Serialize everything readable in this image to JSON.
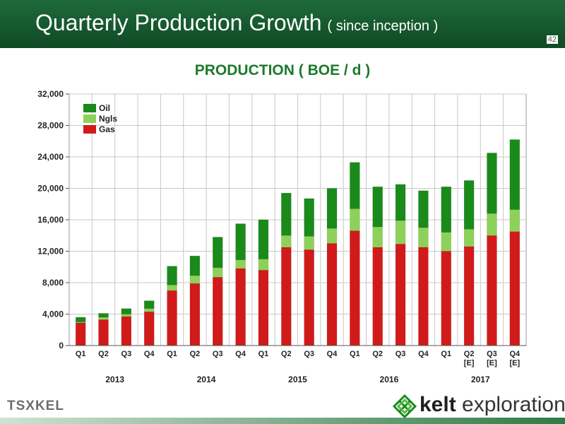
{
  "header": {
    "title": "Quarterly Production Growth",
    "subtitle": "( since inception )",
    "slide_number": "42"
  },
  "colors": {
    "oil": "#1a8a1a",
    "ngls": "#8ed15a",
    "gas": "#d11a1a",
    "header_green": "#1f6a3a",
    "title_green": "#1c7a2c"
  },
  "chart_data": {
    "type": "bar",
    "stacked": true,
    "title": "PRODUCTION ( BOE / d )",
    "categories": [
      "Q1",
      "Q2",
      "Q3",
      "Q4",
      "Q1",
      "Q2",
      "Q3",
      "Q4",
      "Q1",
      "Q2",
      "Q3",
      "Q4",
      "Q1",
      "Q2",
      "Q3",
      "Q4",
      "Q1",
      "Q2\n[E]",
      "Q3\n[E]",
      "Q4\n[E]"
    ],
    "years": [
      {
        "label": "2013",
        "start": 0,
        "end": 3
      },
      {
        "label": "2014",
        "start": 4,
        "end": 7
      },
      {
        "label": "2015",
        "start": 8,
        "end": 11
      },
      {
        "label": "2016",
        "start": 12,
        "end": 15
      },
      {
        "label": "2017",
        "start": 16,
        "end": 19
      }
    ],
    "series": [
      {
        "name": "Gas",
        "color": "#d11a1a",
        "values": [
          2900,
          3300,
          3700,
          4300,
          7000,
          7900,
          8700,
          9800,
          9600,
          12500,
          12200,
          13000,
          14600,
          12500,
          12900,
          12500,
          12000,
          12600,
          14000,
          14500
        ]
      },
      {
        "name": "Ngls",
        "color": "#8ed15a",
        "values": [
          100,
          300,
          300,
          400,
          700,
          1000,
          1200,
          1100,
          1400,
          1500,
          1700,
          1900,
          2800,
          2600,
          3000,
          2500,
          2400,
          2200,
          2800,
          2800
        ]
      },
      {
        "name": "Oil",
        "color": "#1a8a1a",
        "values": [
          600,
          500,
          700,
          1000,
          2400,
          2500,
          3900,
          4600,
          5000,
          5400,
          4800,
          5100,
          5900,
          5100,
          4600,
          4700,
          5800,
          6200,
          7700,
          8900
        ]
      }
    ],
    "legend": {
      "position": "top-left",
      "order": [
        "Oil",
        "Ngls",
        "Gas"
      ]
    },
    "ylim": [
      0,
      32000
    ],
    "yticks": [
      0,
      4000,
      8000,
      12000,
      16000,
      20000,
      24000,
      28000,
      32000
    ],
    "ytick_labels": [
      "0",
      "4,000",
      "8,000",
      "12,000",
      "16,000",
      "20,000",
      "24,000",
      "28,000",
      "32,000"
    ],
    "grid": true
  },
  "footer": {
    "tsx_label": "TSX",
    "tsx_ticker": "KEL",
    "company_bold": "kelt",
    "company_rest": " exploration"
  }
}
